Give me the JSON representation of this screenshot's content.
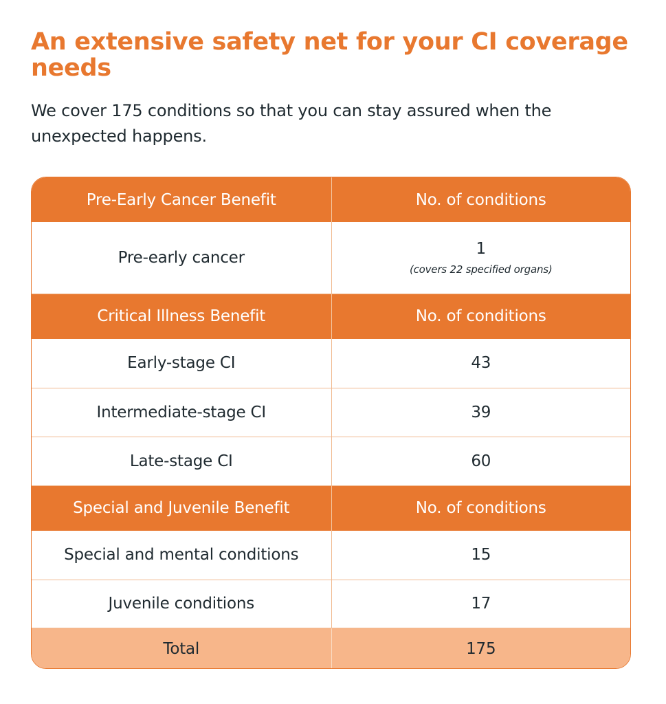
{
  "title": "An extensive safety net for your CI coverage needs",
  "subtitle": "We cover 175 conditions so that you can stay assured when the unexpected happens.",
  "table": {
    "pre_early": {
      "header": "Pre-Early Cancer Benefit",
      "count_header": "No. of conditions",
      "rows": [
        {
          "label": "Pre-early cancer",
          "count": "1",
          "note": "(covers 22 specified organs)"
        }
      ]
    },
    "critical": {
      "header": "Critical Illness Benefit",
      "count_header": "No. of conditions",
      "rows": [
        {
          "label": "Early-stage CI",
          "count": "43"
        },
        {
          "label": "Intermediate-stage CI",
          "count": "39"
        },
        {
          "label": "Late-stage CI",
          "count": "60"
        }
      ]
    },
    "special": {
      "header": "Special and Juvenile Benefit",
      "count_header": "No. of conditions",
      "rows": [
        {
          "label": "Special and mental conditions",
          "count": "15"
        },
        {
          "label": "Juvenile conditions",
          "count": "17"
        }
      ]
    },
    "total": {
      "label": "Total",
      "count": "175"
    }
  },
  "colors": {
    "accent": "#e8782f",
    "total_row": "#f7b68a",
    "text": "#1f2a30"
  }
}
